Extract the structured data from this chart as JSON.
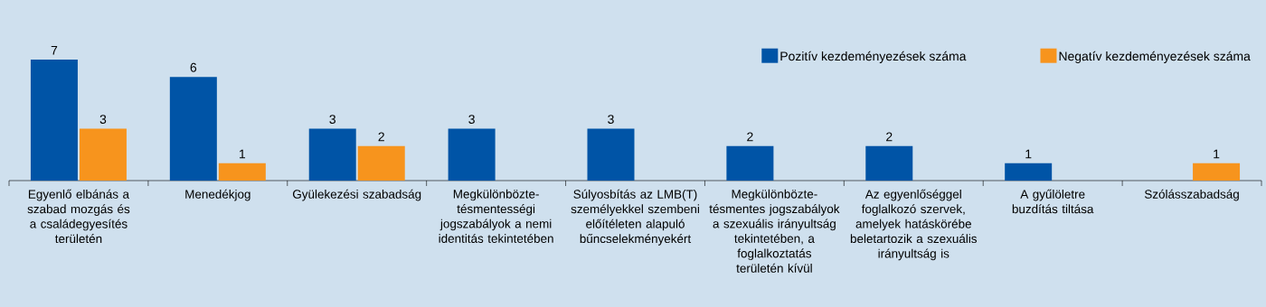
{
  "chart_data": {
    "type": "bar",
    "categories": [
      "Egyenlő elbánás a szabad mozgás és a családegyesítés területén",
      "Menedékjog",
      "Gyülekezési szabadság",
      "Megkülönbözte-tésmentességi jogszabályok a nemi identitás tekintetében",
      "Súlyosbítás az LMB(T) személyekkel szembeni előítéleten alapuló bűncselekményekért",
      "Megkülönbözte-tésmentes jogszabályok a szexuális irányultság tekintetében, a foglalkoztatás területén kívül",
      "Az egyenlőséggel foglalkozó szervek, amelyek hatáskörébe beletartozik a szexuális irányultság is",
      "A gyűlöletre buzdítás tiltása",
      "Szólásszabadság"
    ],
    "series": [
      {
        "name": "Pozitív kezdeményezések száma",
        "color": "#0054a6",
        "values": [
          7,
          6,
          3,
          3,
          3,
          2,
          2,
          1,
          null
        ]
      },
      {
        "name": "Negatív kezdeményezések száma",
        "color": "#f7941d",
        "values": [
          3,
          1,
          2,
          null,
          null,
          null,
          null,
          null,
          1
        ]
      }
    ],
    "data_labels": true,
    "legend": "top right"
  }
}
